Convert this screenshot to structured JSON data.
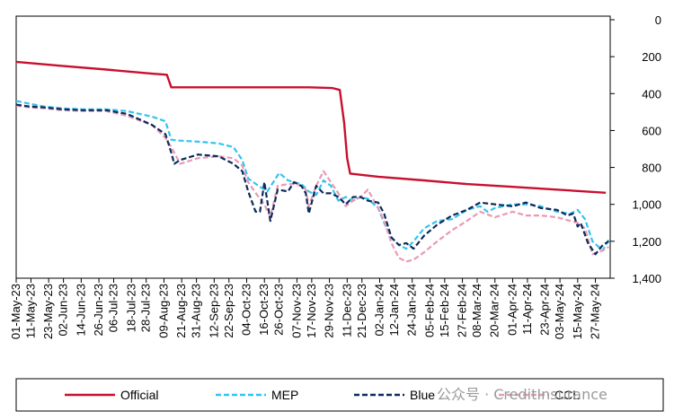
{
  "chart_data": {
    "type": "line",
    "title": "",
    "xlabel": "",
    "ylabel": "",
    "y_axis_position": "right",
    "y_inverted": true,
    "ylim": [
      0,
      1400
    ],
    "yticks": [
      0,
      200,
      400,
      600,
      800,
      1000,
      1200,
      1400
    ],
    "ytick_labels": [
      "0",
      "200",
      "400",
      "600",
      "800",
      "1,000",
      "1,200",
      "1,400"
    ],
    "xlim": [
      "2023-05-01",
      "2024-06-06"
    ],
    "xticks": [
      "2023-05-01",
      "2023-05-11",
      "2023-05-23",
      "2023-06-02",
      "2023-06-14",
      "2023-06-26",
      "2023-07-06",
      "2023-07-18",
      "2023-07-28",
      "2023-08-09",
      "2023-08-21",
      "2023-08-31",
      "2023-09-12",
      "2023-09-22",
      "2023-10-04",
      "2023-10-16",
      "2023-10-26",
      "2023-11-07",
      "2023-11-17",
      "2023-11-29",
      "2023-12-11",
      "2023-12-21",
      "2024-01-02",
      "2024-01-12",
      "2024-01-24",
      "2024-02-05",
      "2024-02-15",
      "2024-02-27",
      "2024-03-08",
      "2024-03-20",
      "2024-04-01",
      "2024-04-11",
      "2024-04-23",
      "2024-05-03",
      "2024-05-15",
      "2024-05-27"
    ],
    "xtick_labels": [
      "01-May-23",
      "11-May-23",
      "23-May-23",
      "02-Jun-23",
      "14-Jun-23",
      "26-Jun-23",
      "06-Jul-23",
      "18-Jul-23",
      "28-Jul-23",
      "09-Aug-23",
      "21-Aug-23",
      "31-Aug-23",
      "12-Sep-23",
      "22-Sep-23",
      "04-Oct-23",
      "16-Oct-23",
      "26-Oct-23",
      "07-Nov-23",
      "17-Nov-23",
      "29-Nov-23",
      "11-Dec-23",
      "21-Dec-23",
      "02-Jan-24",
      "12-Jan-24",
      "24-Jan-24",
      "05-Feb-24",
      "15-Feb-24",
      "27-Feb-24",
      "08-Mar-24",
      "20-Mar-24",
      "01-Apr-24",
      "11-Apr-24",
      "23-Apr-24",
      "03-May-24",
      "15-May-24",
      "27-May-24"
    ],
    "grid": false,
    "legend_position": "bottom",
    "series": [
      {
        "name": "Official",
        "color": "#c8102e",
        "style": "solid",
        "x": [
          "2023-05-01",
          "2023-06-01",
          "2023-07-01",
          "2023-08-01",
          "2023-08-11",
          "2023-08-14",
          "2023-09-15",
          "2023-10-15",
          "2023-11-15",
          "2023-12-01",
          "2023-12-06",
          "2023-12-09",
          "2023-12-11",
          "2023-12-13",
          "2024-01-01",
          "2024-02-01",
          "2024-03-01",
          "2024-04-01",
          "2024-05-01",
          "2024-06-03"
        ],
        "y": [
          228,
          250,
          270,
          292,
          298,
          366,
          366,
          366,
          366,
          370,
          380,
          560,
          750,
          833,
          850,
          870,
          890,
          905,
          920,
          937
        ]
      },
      {
        "name": "MEP",
        "color": "#33c3f0",
        "style": "dashed",
        "x": [
          "2023-05-01",
          "2023-05-10",
          "2023-05-20",
          "2023-06-01",
          "2023-06-15",
          "2023-07-01",
          "2023-07-15",
          "2023-08-01",
          "2023-08-10",
          "2023-08-14",
          "2023-08-20",
          "2023-09-01",
          "2023-09-15",
          "2023-09-25",
          "2023-10-01",
          "2023-10-05",
          "2023-10-12",
          "2023-10-18",
          "2023-10-22",
          "2023-10-26",
          "2023-11-01",
          "2023-11-05",
          "2023-11-10",
          "2023-11-15",
          "2023-11-20",
          "2023-11-25",
          "2023-11-30",
          "2023-12-05",
          "2023-12-10",
          "2023-12-15",
          "2023-12-20",
          "2023-12-25",
          "2024-01-01",
          "2024-01-05",
          "2024-01-10",
          "2024-01-15",
          "2024-01-20",
          "2024-01-25",
          "2024-02-01",
          "2024-02-10",
          "2024-02-20",
          "2024-03-01",
          "2024-03-10",
          "2024-03-15",
          "2024-03-20",
          "2024-04-01",
          "2024-04-10",
          "2024-04-20",
          "2024-05-01",
          "2024-05-10",
          "2024-05-15",
          "2024-05-20",
          "2024-05-25",
          "2024-06-01",
          "2024-06-05"
        ],
        "y": [
          440,
          455,
          470,
          480,
          485,
          485,
          495,
          525,
          550,
          650,
          655,
          660,
          670,
          690,
          760,
          860,
          900,
          930,
          880,
          830,
          870,
          880,
          890,
          930,
          950,
          870,
          900,
          980,
          960,
          980,
          960,
          970,
          1020,
          1100,
          1180,
          1220,
          1240,
          1200,
          1130,
          1090,
          1080,
          1030,
          1010,
          1040,
          1020,
          1000,
          1000,
          1010,
          1040,
          1050,
          1030,
          1080,
          1200,
          1250,
          1190
        ]
      },
      {
        "name": "Blue",
        "color": "#0d2a5a",
        "style": "dashed",
        "x": [
          "2023-05-01",
          "2023-05-10",
          "2023-05-20",
          "2023-06-01",
          "2023-06-15",
          "2023-07-01",
          "2023-07-15",
          "2023-08-01",
          "2023-08-10",
          "2023-08-14",
          "2023-08-16",
          "2023-08-20",
          "2023-09-01",
          "2023-09-15",
          "2023-09-25",
          "2023-10-01",
          "2023-10-05",
          "2023-10-10",
          "2023-10-13",
          "2023-10-16",
          "2023-10-20",
          "2023-10-25",
          "2023-11-01",
          "2023-11-05",
          "2023-11-10",
          "2023-11-13",
          "2023-11-15",
          "2023-11-20",
          "2023-11-25",
          "2023-11-30",
          "2023-12-05",
          "2023-12-10",
          "2023-12-15",
          "2023-12-20",
          "2023-12-25",
          "2024-01-01",
          "2024-01-05",
          "2024-01-10",
          "2024-01-15",
          "2024-01-20",
          "2024-01-25",
          "2024-02-01",
          "2024-02-10",
          "2024-02-20",
          "2024-03-01",
          "2024-03-10",
          "2024-03-20",
          "2024-04-01",
          "2024-04-10",
          "2024-04-20",
          "2024-05-01",
          "2024-05-08",
          "2024-05-12",
          "2024-05-15",
          "2024-05-17",
          "2024-05-22",
          "2024-05-27",
          "2024-06-01",
          "2024-06-05"
        ],
        "y": [
          460,
          470,
          475,
          485,
          490,
          490,
          510,
          570,
          620,
          720,
          780,
          760,
          730,
          740,
          780,
          820,
          930,
          1040,
          1040,
          880,
          1090,
          920,
          930,
          880,
          900,
          940,
          1050,
          900,
          940,
          940,
          960,
          1000,
          960,
          960,
          980,
          990,
          1050,
          1180,
          1220,
          1210,
          1240,
          1170,
          1110,
          1060,
          1030,
          990,
          1000,
          1010,
          990,
          1020,
          1030,
          1060,
          1050,
          1120,
          1100,
          1210,
          1270,
          1220,
          1200
        ]
      },
      {
        "name": "CCL",
        "color": "#e89ab4",
        "style": "dashed",
        "x": [
          "2023-05-01",
          "2023-05-10",
          "2023-05-20",
          "2023-06-01",
          "2023-06-15",
          "2023-07-01",
          "2023-07-15",
          "2023-08-01",
          "2023-08-10",
          "2023-08-14",
          "2023-08-20",
          "2023-09-01",
          "2023-09-15",
          "2023-09-25",
          "2023-10-01",
          "2023-10-05",
          "2023-10-12",
          "2023-10-16",
          "2023-10-20",
          "2023-10-25",
          "2023-11-01",
          "2023-11-05",
          "2023-11-10",
          "2023-11-13",
          "2023-11-15",
          "2023-11-20",
          "2023-11-25",
          "2023-11-30",
          "2023-12-05",
          "2023-12-10",
          "2023-12-15",
          "2023-12-20",
          "2023-12-25",
          "2024-01-01",
          "2024-01-05",
          "2024-01-10",
          "2024-01-15",
          "2024-01-20",
          "2024-01-25",
          "2024-02-01",
          "2024-02-10",
          "2024-02-20",
          "2024-03-01",
          "2024-03-10",
          "2024-03-20",
          "2024-04-01",
          "2024-04-10",
          "2024-04-20",
          "2024-05-01",
          "2024-05-10",
          "2024-05-15",
          "2024-05-20",
          "2024-05-25",
          "2024-06-01",
          "2024-06-05"
        ],
        "y": [
          465,
          475,
          480,
          490,
          495,
          495,
          520,
          570,
          640,
          690,
          780,
          750,
          740,
          750,
          790,
          880,
          960,
          1000,
          1070,
          900,
          890,
          890,
          900,
          920,
          1010,
          900,
          820,
          880,
          940,
          1010,
          980,
          960,
          920,
          1020,
          1090,
          1210,
          1290,
          1310,
          1300,
          1260,
          1200,
          1140,
          1090,
          1040,
          1070,
          1040,
          1060,
          1060,
          1070,
          1090,
          1100,
          1130,
          1270,
          1250,
          1230
        ]
      }
    ]
  },
  "watermark": {
    "text": "公众号 · CreditInsurance"
  }
}
